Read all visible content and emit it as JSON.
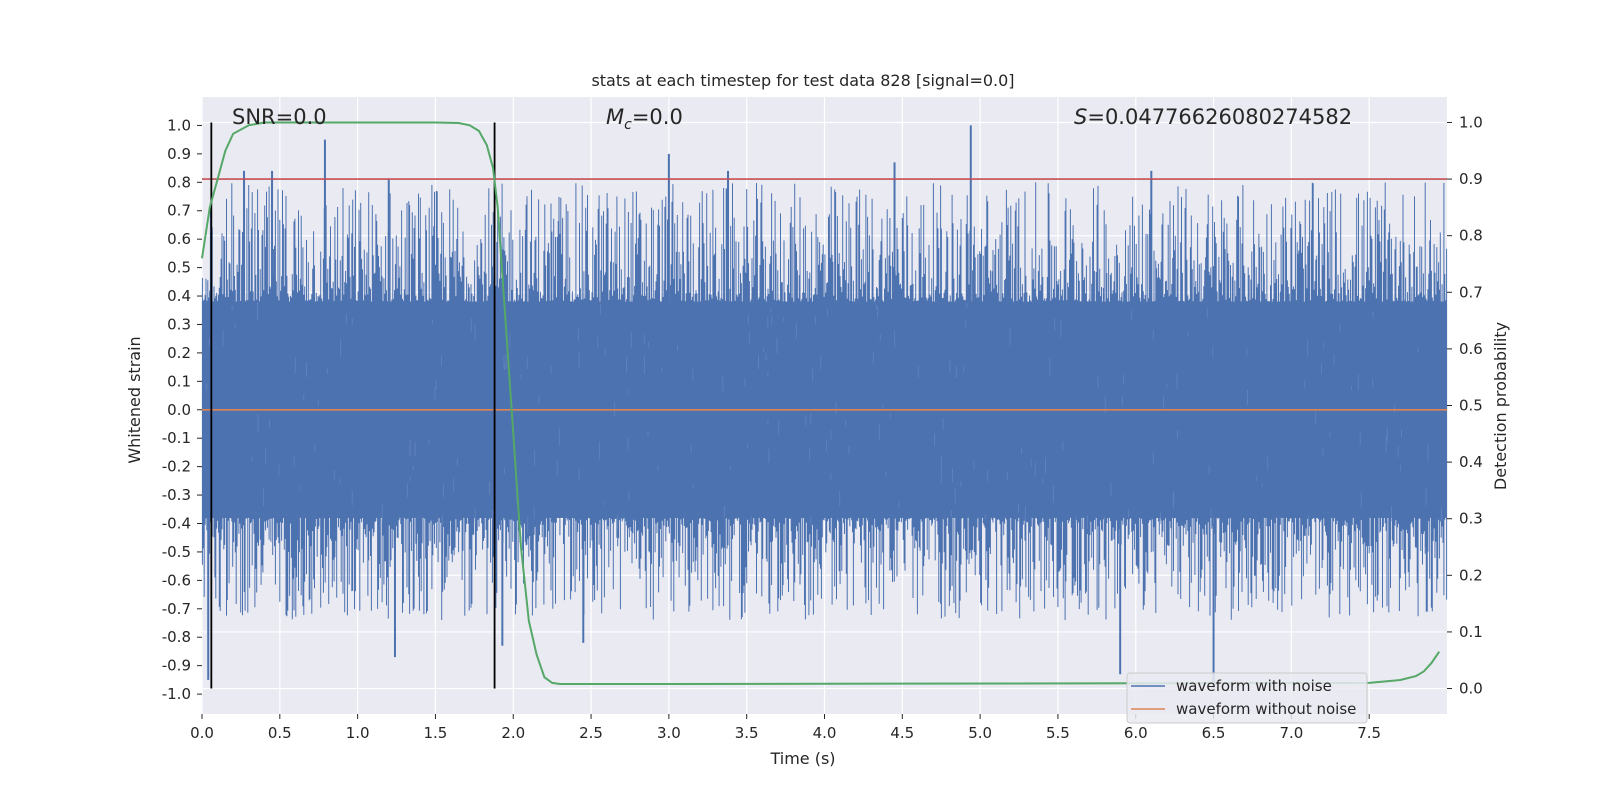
{
  "chart_data": {
    "type": "line",
    "title": "stats at each timestep for test data 828 [signal=0.0]",
    "xlabel": "Time (s)",
    "ylabel": "Whitened strain",
    "y2label": "Detection probability",
    "xlim": [
      0.0,
      8.0
    ],
    "ylim": [
      -1.07,
      1.1
    ],
    "y2lim": [
      -0.045,
      1.045
    ],
    "x_ticks": [
      0.0,
      0.5,
      1.0,
      1.5,
      2.0,
      2.5,
      3.0,
      3.5,
      4.0,
      4.5,
      5.0,
      5.5,
      6.0,
      6.5,
      7.0,
      7.5
    ],
    "x_tick_labels": [
      "0.0",
      "0.5",
      "1.0",
      "1.5",
      "2.0",
      "2.5",
      "3.0",
      "3.5",
      "4.0",
      "4.5",
      "5.0",
      "5.5",
      "6.0",
      "6.5",
      "7.0",
      "7.5"
    ],
    "y_ticks": [
      1.0,
      0.9,
      0.8,
      0.7,
      0.6,
      0.5,
      0.4,
      0.3,
      0.2,
      0.1,
      0.0,
      -0.1,
      -0.2,
      -0.3,
      -0.4,
      -0.5,
      -0.6,
      -0.7,
      -0.8,
      -0.9,
      -1.0
    ],
    "y_tick_labels": [
      "1.0",
      "0.9",
      "0.8",
      "0.7",
      "0.6",
      "0.5",
      "0.4",
      "0.3",
      "0.2",
      "0.1",
      "0.0",
      "-0.1",
      "-0.2",
      "-0.3",
      "-0.4",
      "-0.5",
      "-0.6",
      "-0.7",
      "-0.8",
      "-0.9",
      "-1.0"
    ],
    "y2_ticks": [
      1.0,
      0.9,
      0.8,
      0.7,
      0.6,
      0.5,
      0.4,
      0.3,
      0.2,
      0.1,
      0.0
    ],
    "y2_tick_labels": [
      "1.0",
      "0.9",
      "0.8",
      "0.7",
      "0.6",
      "0.5",
      "0.4",
      "0.3",
      "0.2",
      "0.1",
      "0.0"
    ],
    "annotations": {
      "snr": "SNR=0.0",
      "mc_symbol": "M",
      "mc_sub": "c",
      "mc_value": "=0.0",
      "s_symbol": "S",
      "s_value": "=0.04776626080274582"
    },
    "threshold_y2": 0.9,
    "vertical_lines_x": [
      0.06,
      1.88
    ],
    "noisy_waveform": {
      "name": "waveform with noise",
      "color": "#4c72b0",
      "core_amplitude": 0.38,
      "peaks_positive": [
        {
          "x": 0.27,
          "y": 0.84
        },
        {
          "x": 0.45,
          "y": 0.84
        },
        {
          "x": 0.79,
          "y": 0.95
        },
        {
          "x": 1.2,
          "y": 0.81
        },
        {
          "x": 3.0,
          "y": 0.9
        },
        {
          "x": 3.38,
          "y": 0.84
        },
        {
          "x": 4.45,
          "y": 0.87
        },
        {
          "x": 4.94,
          "y": 1.0
        },
        {
          "x": 6.1,
          "y": 0.84
        }
      ],
      "peaks_negative": [
        {
          "x": 0.04,
          "y": -0.95
        },
        {
          "x": 1.24,
          "y": -0.87
        },
        {
          "x": 1.93,
          "y": -0.83
        },
        {
          "x": 2.45,
          "y": -0.82
        },
        {
          "x": 5.9,
          "y": -0.93
        },
        {
          "x": 6.5,
          "y": -0.98
        },
        {
          "x": 7.87,
          "y": -0.71
        }
      ]
    },
    "clean_waveform": {
      "name": "waveform without noise",
      "color": "#dd8452",
      "value": 0.0
    },
    "detection_probability": {
      "color": "#55a868",
      "x": [
        0.0,
        0.05,
        0.1,
        0.15,
        0.2,
        0.3,
        0.4,
        0.6,
        1.0,
        1.5,
        1.65,
        1.72,
        1.78,
        1.83,
        1.87,
        1.9,
        1.95,
        2.0,
        2.05,
        2.1,
        2.15,
        2.2,
        2.25,
        2.3,
        2.4,
        3.0,
        7.5,
        7.7,
        7.8,
        7.85,
        7.9,
        7.95
      ],
      "y": [
        0.76,
        0.85,
        0.9,
        0.95,
        0.98,
        0.995,
        1.0,
        1.0,
        1.0,
        1.0,
        0.999,
        0.995,
        0.985,
        0.96,
        0.92,
        0.85,
        0.65,
        0.45,
        0.25,
        0.12,
        0.06,
        0.02,
        0.01,
        0.008,
        0.008,
        0.008,
        0.01,
        0.015,
        0.022,
        0.03,
        0.045,
        0.065
      ]
    },
    "legend": {
      "placement": "bottom-right",
      "entries": [
        {
          "label": "waveform with noise",
          "color": "#4c72b0"
        },
        {
          "label": "waveform without noise",
          "color": "#dd8452"
        }
      ]
    },
    "background_color": "#eaeaf2",
    "grid": true
  }
}
